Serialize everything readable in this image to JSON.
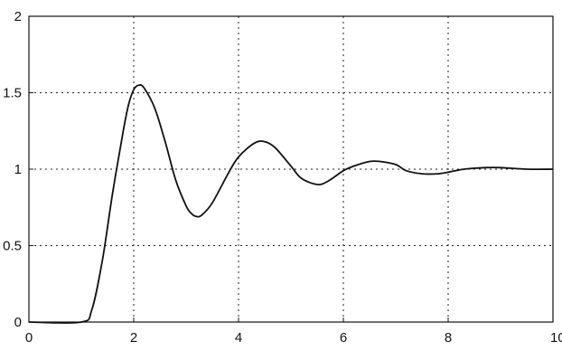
{
  "chart_data": {
    "type": "line",
    "title": "",
    "xlabel": "",
    "ylabel": "",
    "xlim": [
      0,
      10
    ],
    "ylim": [
      0,
      2
    ],
    "grid": true,
    "x_ticks": [
      0,
      2,
      4,
      6,
      8,
      10
    ],
    "x_tick_labels": [
      "0",
      "2",
      "4",
      "6",
      "8",
      "10"
    ],
    "y_ticks": [
      0,
      0.5,
      1,
      1.5,
      2
    ],
    "y_tick_labels": [
      "0",
      "0.5",
      "1",
      "1.5",
      "2"
    ],
    "series": [
      {
        "color": "#111111",
        "x": [
          0,
          1.0,
          1.2,
          1.4,
          1.6,
          1.8,
          1.9,
          2.0,
          2.1,
          2.2,
          2.4,
          2.6,
          2.8,
          3.0,
          3.1,
          3.2,
          3.3,
          3.5,
          3.8,
          4.0,
          4.3,
          4.5,
          4.7,
          5.0,
          5.2,
          5.5,
          5.7,
          6.0,
          6.2,
          6.5,
          6.7,
          7.0,
          7.2,
          7.5,
          7.8,
          8.0,
          8.3,
          8.7,
          9.0,
          9.5,
          10.0
        ],
        "y": [
          0,
          0,
          0.08,
          0.4,
          0.85,
          1.25,
          1.42,
          1.52,
          1.55,
          1.53,
          1.4,
          1.18,
          0.93,
          0.76,
          0.71,
          0.69,
          0.7,
          0.78,
          0.97,
          1.08,
          1.17,
          1.18,
          1.14,
          1.02,
          0.94,
          0.9,
          0.92,
          0.99,
          1.02,
          1.05,
          1.05,
          1.03,
          0.99,
          0.97,
          0.97,
          0.98,
          1.0,
          1.01,
          1.01,
          1.0,
          1.0
        ]
      }
    ]
  }
}
